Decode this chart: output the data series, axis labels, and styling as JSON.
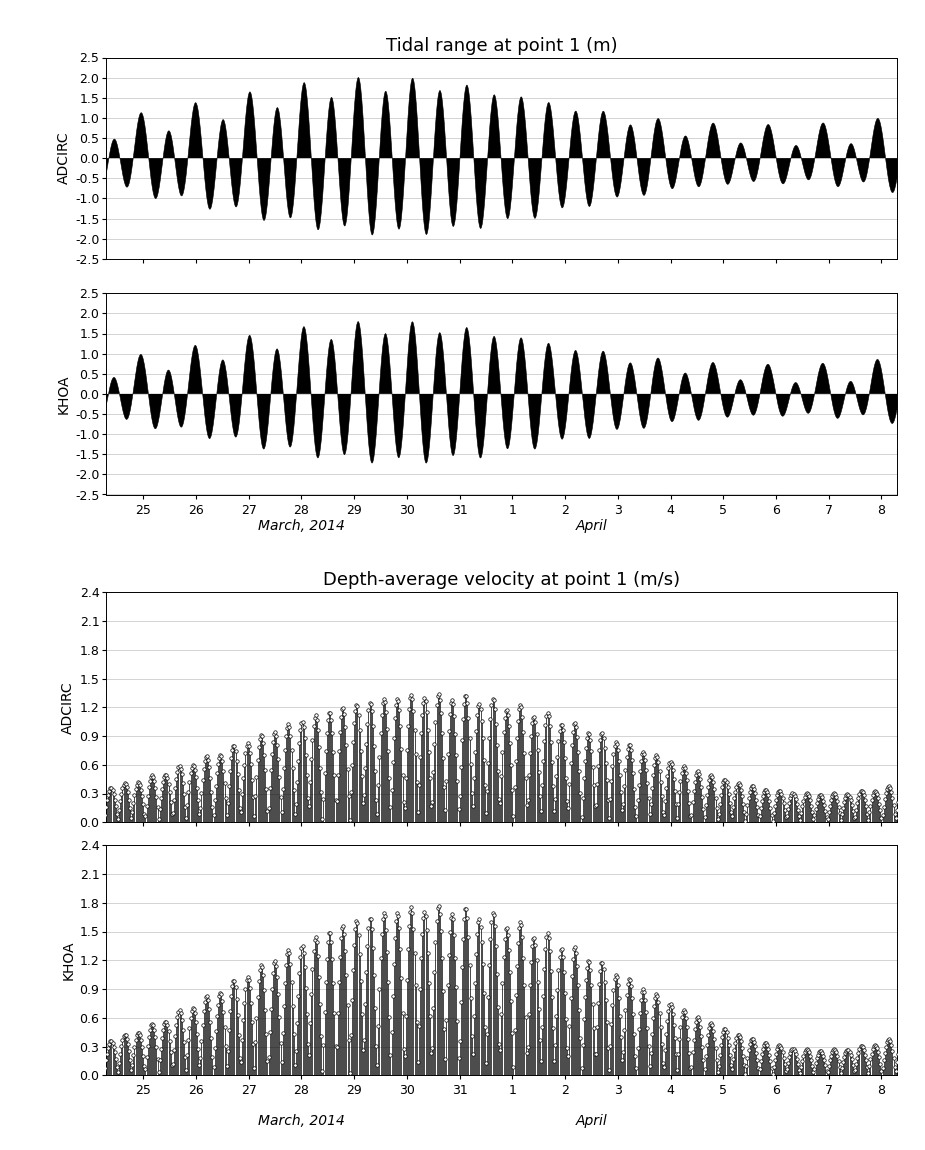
{
  "tidal_title": "Tidal range at point 1 (m)",
  "velocity_title": "Depth-average velocity at point 1 (m/s)",
  "tidal_ylim": [
    -2.5,
    2.5
  ],
  "tidal_yticks": [
    -2.5,
    -2.0,
    -1.5,
    -1.0,
    -0.5,
    0.0,
    0.5,
    1.0,
    1.5,
    2.0,
    2.5
  ],
  "velocity_ylim": [
    0.0,
    2.4
  ],
  "velocity_yticks": [
    0.0,
    0.3,
    0.6,
    0.9,
    1.2,
    1.5,
    1.8,
    2.1,
    2.4
  ],
  "xtick_labels": [
    "25",
    "26",
    "27",
    "28",
    "29",
    "30",
    "31",
    "1",
    "2",
    "3",
    "4",
    "5",
    "6",
    "7",
    "8"
  ],
  "xlabel_march": "March, 2014",
  "xlabel_april": "April",
  "label_adcirc": "ADCIRC",
  "label_khoa": "KHOA",
  "line_color": "black",
  "fill_color": "black",
  "background_color": "white",
  "title_fontsize": 13,
  "label_fontsize": 10,
  "tick_fontsize": 9,
  "axis_label_fontsize": 10
}
